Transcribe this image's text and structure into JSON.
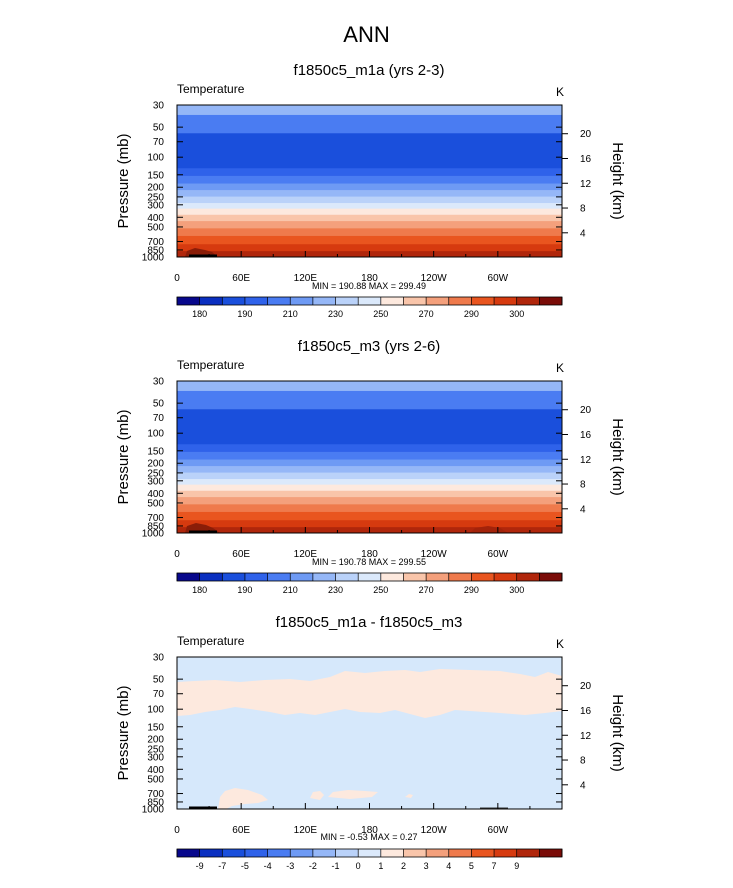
{
  "page_title": "ANN",
  "chart_data": [
    {
      "type": "heatmap",
      "title": "f1850c5_m1a (yrs 2-3)",
      "variable": "Temperature",
      "units": "K",
      "ylabel": "Pressure (mb)",
      "ylabel_right": "Height (km)",
      "x_ticks": [
        "0",
        "60E",
        "120E",
        "180",
        "120W",
        "60W"
      ],
      "y_ticks": [
        "30",
        "50",
        "70",
        "100",
        "150",
        "200",
        "250",
        "300",
        "400",
        "500",
        "700",
        "850",
        "1000"
      ],
      "y_ticks_right": [
        "20",
        "16",
        "12",
        "8",
        "4"
      ],
      "stats": "MIN = 190.88  MAX = 299.49",
      "colorbar_labels": [
        "180",
        "190",
        "210",
        "230",
        "250",
        "270",
        "290",
        "300"
      ],
      "colorbar_colors": [
        "#08088c",
        "#0a2fc0",
        "#1a4fdc",
        "#2f62ea",
        "#4a7cf2",
        "#6e9af4",
        "#95b7f7",
        "#bad2f9",
        "#dbe9fb",
        "#fde9de",
        "#f9c5aa",
        "#f4a07c",
        "#ef7a4c",
        "#e9551f",
        "#d63a0f",
        "#b0260b",
        "#7a0c08"
      ],
      "field_bands": [
        {
          "from_mb": 30,
          "to_mb": 38,
          "color": "#95b7f7"
        },
        {
          "from_mb": 38,
          "to_mb": 58,
          "color": "#4a7cf2"
        },
        {
          "from_mb": 58,
          "to_mb": 130,
          "color": "#1a4fdc"
        },
        {
          "from_mb": 130,
          "to_mb": 155,
          "color": "#2f62ea"
        },
        {
          "from_mb": 155,
          "to_mb": 185,
          "color": "#4a7cf2"
        },
        {
          "from_mb": 185,
          "to_mb": 215,
          "color": "#6e9af4"
        },
        {
          "from_mb": 215,
          "to_mb": 250,
          "color": "#95b7f7"
        },
        {
          "from_mb": 250,
          "to_mb": 290,
          "color": "#bad2f9"
        },
        {
          "from_mb": 290,
          "to_mb": 330,
          "color": "#dbe9fb"
        },
        {
          "from_mb": 330,
          "to_mb": 380,
          "color": "#fde9de"
        },
        {
          "from_mb": 380,
          "to_mb": 440,
          "color": "#f9c5aa"
        },
        {
          "from_mb": 440,
          "to_mb": 520,
          "color": "#f4a07c"
        },
        {
          "from_mb": 520,
          "to_mb": 620,
          "color": "#ef7a4c"
        },
        {
          "from_mb": 620,
          "to_mb": 750,
          "color": "#e9551f"
        },
        {
          "from_mb": 750,
          "to_mb": 880,
          "color": "#d63a0f"
        },
        {
          "from_mb": 880,
          "to_mb": 1000,
          "color": "#b0260b"
        }
      ]
    },
    {
      "type": "heatmap",
      "title": "f1850c5_m3 (yrs 2-6)",
      "variable": "Temperature",
      "units": "K",
      "ylabel": "Pressure (mb)",
      "ylabel_right": "Height (km)",
      "x_ticks": [
        "0",
        "60E",
        "120E",
        "180",
        "120W",
        "60W"
      ],
      "y_ticks": [
        "30",
        "50",
        "70",
        "100",
        "150",
        "200",
        "250",
        "300",
        "400",
        "500",
        "700",
        "850",
        "1000"
      ],
      "y_ticks_right": [
        "20",
        "16",
        "12",
        "8",
        "4"
      ],
      "stats": "MIN = 190.78  MAX = 299.55",
      "colorbar_labels": [
        "180",
        "190",
        "210",
        "230",
        "250",
        "270",
        "290",
        "300"
      ],
      "colorbar_colors": [
        "#08088c",
        "#0a2fc0",
        "#1a4fdc",
        "#2f62ea",
        "#4a7cf2",
        "#6e9af4",
        "#95b7f7",
        "#bad2f9",
        "#dbe9fb",
        "#fde9de",
        "#f9c5aa",
        "#f4a07c",
        "#ef7a4c",
        "#e9551f",
        "#d63a0f",
        "#b0260b",
        "#7a0c08"
      ],
      "field_bands": [
        {
          "from_mb": 30,
          "to_mb": 38,
          "color": "#95b7f7"
        },
        {
          "from_mb": 38,
          "to_mb": 58,
          "color": "#4a7cf2"
        },
        {
          "from_mb": 58,
          "to_mb": 130,
          "color": "#1a4fdc"
        },
        {
          "from_mb": 130,
          "to_mb": 155,
          "color": "#2f62ea"
        },
        {
          "from_mb": 155,
          "to_mb": 185,
          "color": "#4a7cf2"
        },
        {
          "from_mb": 185,
          "to_mb": 215,
          "color": "#6e9af4"
        },
        {
          "from_mb": 215,
          "to_mb": 250,
          "color": "#95b7f7"
        },
        {
          "from_mb": 250,
          "to_mb": 290,
          "color": "#bad2f9"
        },
        {
          "from_mb": 290,
          "to_mb": 330,
          "color": "#dbe9fb"
        },
        {
          "from_mb": 330,
          "to_mb": 380,
          "color": "#fde9de"
        },
        {
          "from_mb": 380,
          "to_mb": 440,
          "color": "#f9c5aa"
        },
        {
          "from_mb": 440,
          "to_mb": 520,
          "color": "#f4a07c"
        },
        {
          "from_mb": 520,
          "to_mb": 620,
          "color": "#ef7a4c"
        },
        {
          "from_mb": 620,
          "to_mb": 750,
          "color": "#e9551f"
        },
        {
          "from_mb": 750,
          "to_mb": 880,
          "color": "#d63a0f"
        },
        {
          "from_mb": 880,
          "to_mb": 1000,
          "color": "#b0260b"
        }
      ]
    },
    {
      "type": "heatmap",
      "title": "f1850c5_m1a - f1850c5_m3",
      "variable": "Temperature",
      "units": "K",
      "ylabel": "Pressure (mb)",
      "ylabel_right": "Height (km)",
      "x_ticks": [
        "0",
        "60E",
        "120E",
        "180",
        "120W",
        "60W"
      ],
      "y_ticks": [
        "30",
        "50",
        "70",
        "100",
        "150",
        "200",
        "250",
        "300",
        "400",
        "500",
        "700",
        "850",
        "1000"
      ],
      "y_ticks_right": [
        "20",
        "16",
        "12",
        "8",
        "4"
      ],
      "stats": "MIN = -0.53  MAX =   0.27",
      "colorbar_labels": [
        "-9",
        "-7",
        "-5",
        "-4",
        "-3",
        "-2",
        "-1",
        "0",
        "1",
        "2",
        "3",
        "4",
        "5",
        "7",
        "9"
      ],
      "colorbar_colors": [
        "#08088c",
        "#0a2fc0",
        "#1a4fdc",
        "#2f62ea",
        "#4a7cf2",
        "#6e9af4",
        "#95b7f7",
        "#bad2f9",
        "#dbe9fb",
        "#fde9de",
        "#f9c5aa",
        "#f4a07c",
        "#ef7a4c",
        "#e9551f",
        "#d63a0f",
        "#b0260b",
        "#7a0c08"
      ],
      "field_bands": [
        {
          "from_mb": 30,
          "to_mb": 1000,
          "color": "#d6e8fb"
        }
      ],
      "anomaly_positive_color": "#fde9de"
    }
  ]
}
